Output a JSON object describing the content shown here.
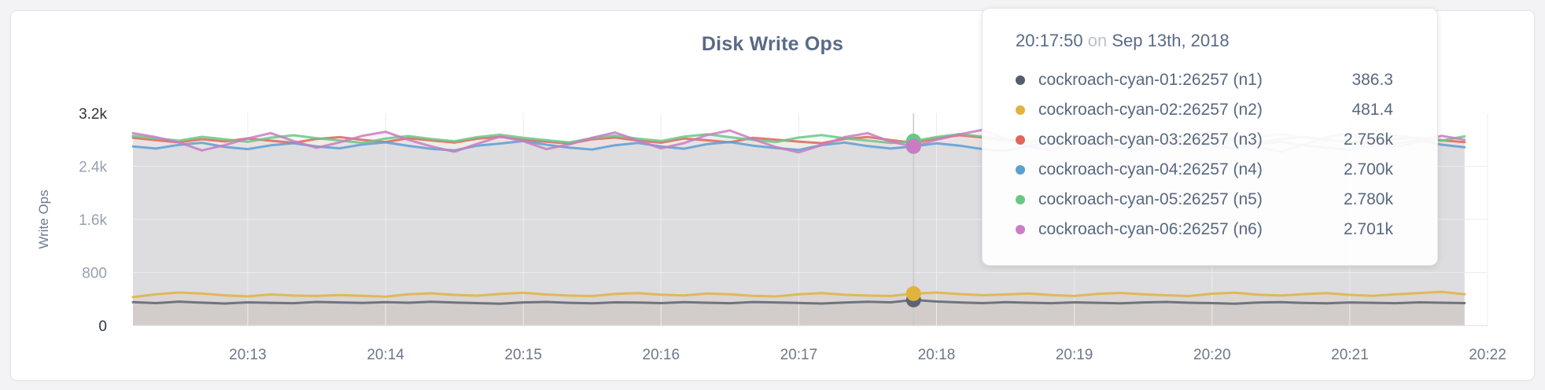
{
  "chart": {
    "hover_time": "20:17:50"
  },
  "chart_data": {
    "type": "line",
    "title": "Disk Write Ops",
    "xlabel": "",
    "ylabel": "Write Ops",
    "ylim": [
      0,
      3200
    ],
    "grid": true,
    "legend_position": "tooltip",
    "yticks": [
      {
        "value": 0,
        "label": "0"
      },
      {
        "value": 800,
        "label": "800"
      },
      {
        "value": 1600,
        "label": "1.6k"
      },
      {
        "value": 2400,
        "label": "2.4k"
      },
      {
        "value": 3200,
        "label": "3.2k"
      }
    ],
    "xticks": [
      "20:13",
      "20:14",
      "20:15",
      "20:16",
      "20:17",
      "20:18",
      "20:19",
      "20:20",
      "20:21",
      "20:22"
    ],
    "x": [
      "20:12:10",
      "20:12:20",
      "20:12:30",
      "20:12:40",
      "20:12:50",
      "20:13:00",
      "20:13:10",
      "20:13:20",
      "20:13:30",
      "20:13:40",
      "20:13:50",
      "20:14:00",
      "20:14:10",
      "20:14:20",
      "20:14:30",
      "20:14:40",
      "20:14:50",
      "20:15:00",
      "20:15:10",
      "20:15:20",
      "20:15:30",
      "20:15:40",
      "20:15:50",
      "20:16:00",
      "20:16:10",
      "20:16:20",
      "20:16:30",
      "20:16:40",
      "20:16:50",
      "20:17:00",
      "20:17:10",
      "20:17:20",
      "20:17:30",
      "20:17:40",
      "20:17:50",
      "20:18:00",
      "20:18:10",
      "20:18:20",
      "20:18:30",
      "20:18:40",
      "20:18:50",
      "20:19:00",
      "20:19:10",
      "20:19:20",
      "20:19:30",
      "20:19:40",
      "20:19:50",
      "20:20:00",
      "20:20:10",
      "20:20:20",
      "20:20:30",
      "20:20:40",
      "20:20:50",
      "20:21:00",
      "20:21:10",
      "20:21:20",
      "20:21:30",
      "20:21:40",
      "20:21:50"
    ],
    "series": [
      {
        "name": "cockroach-cyan-01:26257 (n1)",
        "color": "#5c6372",
        "values": [
          352,
          338,
          360,
          345,
          332,
          350,
          342,
          336,
          355,
          348,
          340,
          352,
          344,
          358,
          346,
          338,
          330,
          348,
          356,
          342,
          334,
          350,
          346,
          338,
          352,
          344,
          336,
          354,
          348,
          340,
          332,
          346,
          358,
          350,
          386.3,
          362,
          348,
          338,
          352,
          344,
          336,
          350,
          342,
          334,
          348,
          356,
          344,
          338,
          330,
          346,
          352,
          340,
          334,
          348,
          342,
          336,
          350,
          344,
          338
        ]
      },
      {
        "name": "cockroach-cyan-02:26257 (n2)",
        "color": "#e0b33f",
        "values": [
          430,
          472,
          498,
          482,
          455,
          440,
          468,
          452,
          446,
          460,
          448,
          436,
          470,
          486,
          462,
          450,
          478,
          494,
          468,
          452,
          444,
          476,
          490,
          466,
          454,
          482,
          470,
          448,
          438,
          472,
          488,
          464,
          452,
          446,
          481.4,
          498,
          474,
          458,
          468,
          484,
          460,
          446,
          478,
          492,
          470,
          456,
          444,
          480,
          495,
          466,
          452,
          474,
          488,
          462,
          448,
          470,
          490,
          508,
          472
        ]
      },
      {
        "name": "cockroach-cyan-03:26257 (n3)",
        "color": "#de655a",
        "values": [
          2830,
          2795,
          2762,
          2808,
          2775,
          2820,
          2786,
          2754,
          2812,
          2840,
          2798,
          2766,
          2824,
          2790,
          2758,
          2816,
          2845,
          2800,
          2770,
          2742,
          2806,
          2834,
          2788,
          2756,
          2818,
          2792,
          2762,
          2830,
          2802,
          2772,
          2748,
          2814,
          2842,
          2796,
          2756,
          2822,
          2868,
          2836,
          2790,
          2760,
          2812,
          2780,
          2750,
          2806,
          2838,
          2794,
          2764,
          2820,
          2788,
          2758,
          2814,
          2846,
          2800,
          2768,
          2746,
          2810,
          2836,
          2792,
          2764
        ]
      },
      {
        "name": "cockroach-cyan-04:26257 (n4)",
        "color": "#5c9fd3",
        "values": [
          2700,
          2668,
          2724,
          2756,
          2692,
          2660,
          2716,
          2748,
          2700,
          2672,
          2730,
          2762,
          2708,
          2664,
          2640,
          2712,
          2744,
          2780,
          2726,
          2682,
          2654,
          2718,
          2752,
          2700,
          2666,
          2734,
          2766,
          2712,
          2676,
          2648,
          2720,
          2758,
          2704,
          2668,
          2700,
          2746,
          2712,
          2660,
          2632,
          2708,
          2742,
          2778,
          2724,
          2686,
          2652,
          2716,
          2750,
          2702,
          2670,
          2738,
          2770,
          2718,
          2680,
          2650,
          2714,
          2748,
          2796,
          2726,
          2688
        ]
      },
      {
        "name": "cockroach-cyan-05:26257 (n5)",
        "color": "#69c786",
        "values": [
          2860,
          2822,
          2786,
          2844,
          2808,
          2770,
          2832,
          2868,
          2824,
          2790,
          2752,
          2818,
          2856,
          2812,
          2778,
          2840,
          2876,
          2830,
          2794,
          2760,
          2826,
          2862,
          2816,
          2782,
          2848,
          2884,
          2838,
          2800,
          2766,
          2834,
          2870,
          2822,
          2788,
          2752,
          2780,
          2842,
          2886,
          2848,
          2806,
          2772,
          2838,
          2874,
          2826,
          2792,
          2758,
          2824,
          2860,
          2814,
          2780,
          2846,
          2882,
          2834,
          2798,
          2764,
          2830,
          2866,
          2820,
          2786,
          2852
        ]
      },
      {
        "name": "cockroach-cyan-06:26257 (n6)",
        "color": "#c97cc2",
        "values": [
          2900,
          2840,
          2760,
          2640,
          2720,
          2820,
          2900,
          2780,
          2680,
          2760,
          2860,
          2920,
          2800,
          2700,
          2620,
          2740,
          2850,
          2780,
          2660,
          2730,
          2830,
          2910,
          2790,
          2670,
          2750,
          2870,
          2940,
          2810,
          2690,
          2610,
          2720,
          2840,
          2900,
          2770,
          2701,
          2800,
          2880,
          2950,
          2820,
          2700,
          2640,
          2760,
          2860,
          2780,
          2660,
          2740,
          2850,
          2920,
          2790,
          2680,
          2620,
          2730,
          2840,
          2900,
          2760,
          2690,
          2770,
          2860,
          2800
        ]
      }
    ]
  },
  "tooltip": {
    "time": "20:17:50",
    "conjunction": "on",
    "date": "Sep 13th, 2018",
    "rows": [
      {
        "label": "cockroach-cyan-01:26257 (n1)",
        "value": "386.3",
        "color": "#555c6a"
      },
      {
        "label": "cockroach-cyan-02:26257 (n2)",
        "value": "481.4",
        "color": "#e2b33e"
      },
      {
        "label": "cockroach-cyan-03:26257 (n3)",
        "value": "2.756k",
        "color": "#e06657"
      },
      {
        "label": "cockroach-cyan-04:26257 (n4)",
        "value": "2.700k",
        "color": "#5ba0d0"
      },
      {
        "label": "cockroach-cyan-05:26257 (n5)",
        "value": "2.780k",
        "color": "#6bc785"
      },
      {
        "label": "cockroach-cyan-06:26257 (n6)",
        "value": "2.701k",
        "color": "#ca7fc4"
      }
    ]
  },
  "colors": {
    "page_background": "#f3f3f5",
    "card_background": "#ffffff",
    "title_text": "#5a6a87",
    "axis_muted_tick": "#98a1b0",
    "axis_endpoint_tick": "#2f3540",
    "x_tick": "#6d7889",
    "gridline": "#ececef",
    "hover_line": "#c6c9ce"
  }
}
